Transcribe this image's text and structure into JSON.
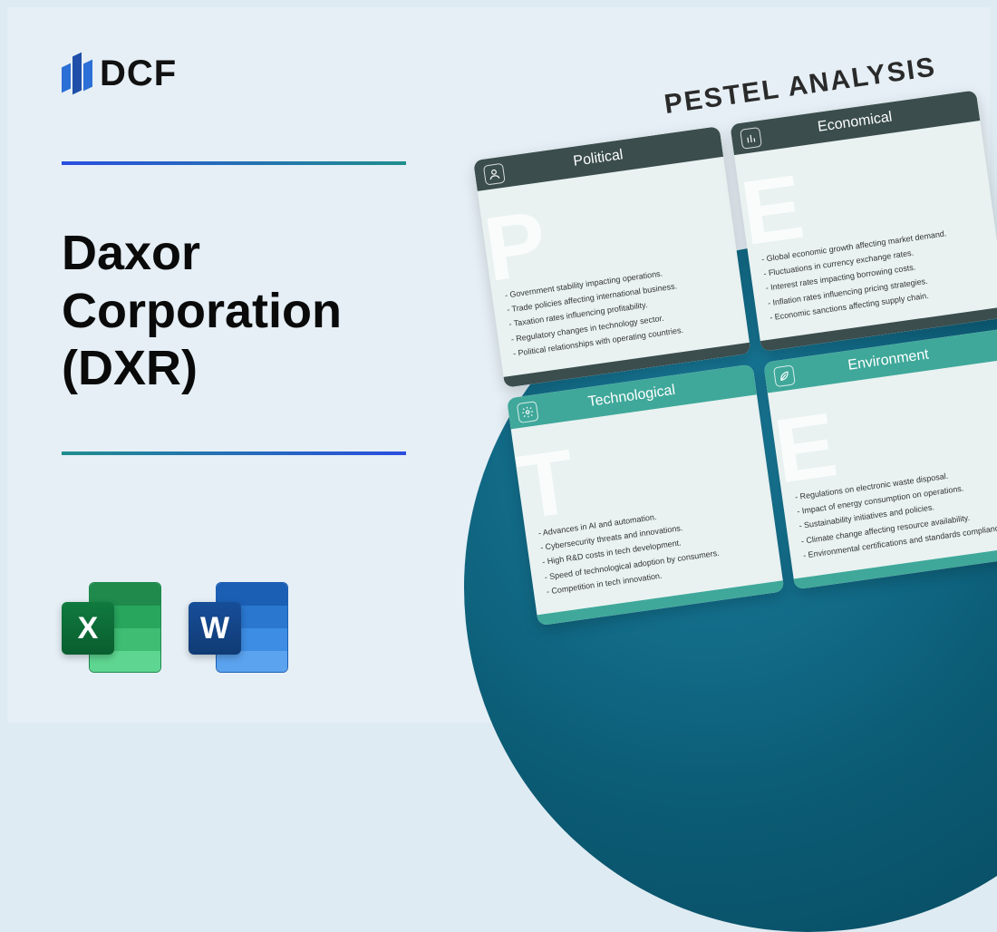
{
  "logo": {
    "text": "DCF"
  },
  "title": "Daxor\nCorporation\n(DXR)",
  "colors": {
    "page_bg": "#e5eff5",
    "circle_gradient": [
      "#1a7e9e",
      "#0b5b74",
      "#07495e"
    ],
    "divider_gradient": [
      "#2a4ee0",
      "#1f8e8e"
    ],
    "dark_header": "#3b4d4d",
    "teal_header": "#3fa89a"
  },
  "pestel": {
    "title": "PESTEL ANALYSIS",
    "cards": [
      {
        "key": "political",
        "label": "Political",
        "theme": "dark",
        "watermark": "P",
        "icon": "person-icon",
        "items": [
          "- Government stability impacting operations.",
          "- Trade policies affecting international business.",
          "- Taxation rates influencing profitability.",
          "- Regulatory changes in technology sector.",
          "- Political relationships with operating countries."
        ]
      },
      {
        "key": "economical",
        "label": "Economical",
        "theme": "dark",
        "watermark": "E",
        "icon": "bars-icon",
        "items": [
          "- Global economic growth affecting market demand.",
          "- Fluctuations in currency exchange rates.",
          "- Interest rates impacting borrowing costs.",
          "- Inflation rates influencing pricing strategies.",
          "- Economic sanctions affecting supply chain."
        ]
      },
      {
        "key": "technological",
        "label": "Technological",
        "theme": "teal",
        "watermark": "T",
        "icon": "gear-icon",
        "items": [
          "- Advances in AI and automation.",
          "- Cybersecurity threats and innovations.",
          "- High R&D costs in tech development.",
          "- Speed of technological adoption by consumers.",
          "- Competition in tech innovation."
        ]
      },
      {
        "key": "environment",
        "label": "Environment",
        "theme": "teal",
        "watermark": "E",
        "icon": "leaf-icon",
        "items": [
          "- Regulations on electronic waste disposal.",
          "- Impact of energy consumption on operations.",
          "- Sustainability initiatives and policies.",
          "- Climate change affecting resource availability.",
          "- Environmental certifications and standards compliance."
        ]
      }
    ]
  },
  "apps": {
    "excel": {
      "letter": "X"
    },
    "word": {
      "letter": "W"
    }
  }
}
